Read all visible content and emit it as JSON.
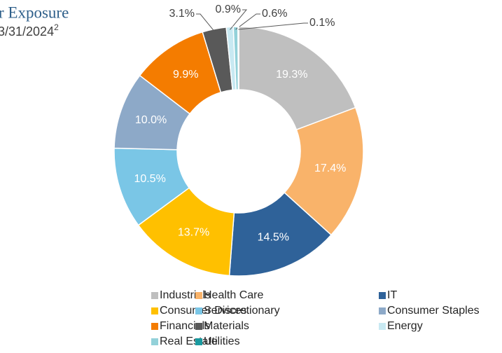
{
  "chart_data": {
    "type": "donut",
    "title": "r Exposure",
    "subtitle": "3/31/2024",
    "subtitle_superscript": "2",
    "categories": [
      "Industrials",
      "Health Care",
      "IT",
      "Consumer Discretionary",
      "Services",
      "Consumer Staples",
      "Financials",
      "Materials",
      "Energy",
      "Real Estate",
      "Utilities"
    ],
    "values": [
      19.3,
      17.4,
      14.5,
      13.7,
      10.5,
      10.0,
      9.9,
      3.1,
      0.9,
      0.6,
      0.1
    ],
    "value_labels": [
      "19.3%",
      "17.4%",
      "14.5%",
      "13.7%",
      "10.5%",
      "10.0%",
      "9.9%",
      "3.1%",
      "0.9%",
      "0.6%",
      "0.1%"
    ],
    "colors": [
      "#bfbfbf",
      "#f9b36a",
      "#2f6299",
      "#ffc000",
      "#7ac6e6",
      "#8da9c8",
      "#f47c00",
      "#595959",
      "#c8e9f2",
      "#93d1d9",
      "#1a9aa0"
    ],
    "legend": "bottom"
  }
}
